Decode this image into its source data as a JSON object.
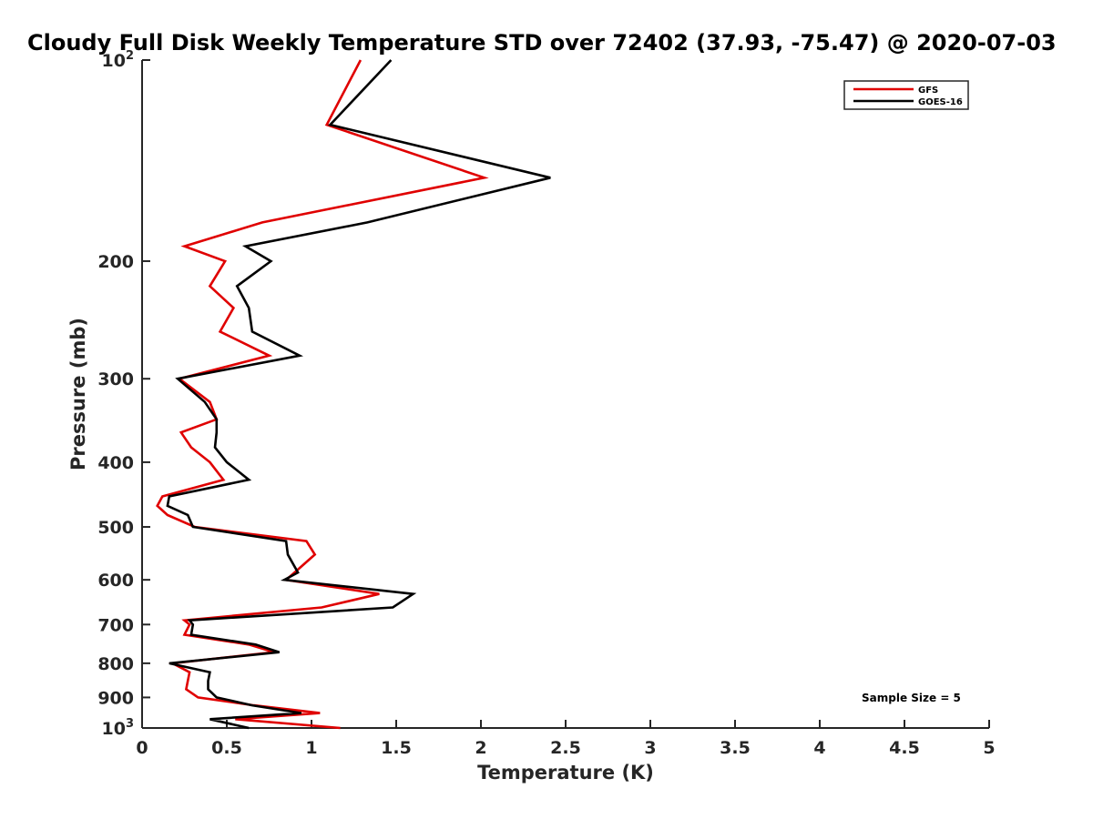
{
  "chart_data": {
    "type": "line",
    "title": "Cloudy Full Disk Weekly Temperature STD over 72402 (37.93, -75.47) @ 2020-07-03",
    "xlabel": "Temperature (K)",
    "ylabel": "Pressure (mb)",
    "xlim": [
      0,
      5
    ],
    "ylim": [
      100,
      1000
    ],
    "y_scale": "log",
    "y_reversed": true,
    "grid": false,
    "legend_position": "top-right",
    "x_ticks": [
      {
        "value": 0,
        "label": "0"
      },
      {
        "value": 0.5,
        "label": "0.5"
      },
      {
        "value": 1,
        "label": "1"
      },
      {
        "value": 1.5,
        "label": "1.5"
      },
      {
        "value": 2,
        "label": "2"
      },
      {
        "value": 2.5,
        "label": "2.5"
      },
      {
        "value": 3,
        "label": "3"
      },
      {
        "value": 3.5,
        "label": "3.5"
      },
      {
        "value": 4,
        "label": "4"
      },
      {
        "value": 4.5,
        "label": "4.5"
      },
      {
        "value": 5,
        "label": "5"
      }
    ],
    "y_ticks": [
      {
        "value": 100,
        "label": "10",
        "sup": "2"
      },
      {
        "value": 200,
        "label": "200",
        "sup": ""
      },
      {
        "value": 300,
        "label": "300",
        "sup": ""
      },
      {
        "value": 400,
        "label": "400",
        "sup": ""
      },
      {
        "value": 500,
        "label": "500",
        "sup": ""
      },
      {
        "value": 600,
        "label": "600",
        "sup": ""
      },
      {
        "value": 700,
        "label": "700",
        "sup": ""
      },
      {
        "value": 800,
        "label": "800",
        "sup": ""
      },
      {
        "value": 900,
        "label": "900",
        "sup": ""
      },
      {
        "value": 1000,
        "label": "10",
        "sup": "3"
      }
    ],
    "series": [
      {
        "name": "GFS",
        "color": "#e00000",
        "points": [
          [
            1.29,
            100
          ],
          [
            1.09,
            125
          ],
          [
            2.02,
            150
          ],
          [
            0.71,
            175
          ],
          [
            0.25,
            190
          ],
          [
            0.49,
            200
          ],
          [
            0.4,
            218
          ],
          [
            0.54,
            235
          ],
          [
            0.46,
            255
          ],
          [
            0.75,
            277
          ],
          [
            0.22,
            300
          ],
          [
            0.4,
            325
          ],
          [
            0.44,
            345
          ],
          [
            0.23,
            361
          ],
          [
            0.29,
            380
          ],
          [
            0.4,
            400
          ],
          [
            0.48,
            425
          ],
          [
            0.12,
            450
          ],
          [
            0.09,
            465
          ],
          [
            0.15,
            480
          ],
          [
            0.31,
            500
          ],
          [
            0.97,
            525
          ],
          [
            1.02,
            550
          ],
          [
            0.9,
            585
          ],
          [
            0.85,
            600
          ],
          [
            1.4,
            630
          ],
          [
            1.06,
            660
          ],
          [
            0.25,
            690
          ],
          [
            0.28,
            700
          ],
          [
            0.25,
            725
          ],
          [
            0.63,
            750
          ],
          [
            0.78,
            770
          ],
          [
            0.18,
            800
          ],
          [
            0.28,
            825
          ],
          [
            0.27,
            850
          ],
          [
            0.26,
            875
          ],
          [
            0.33,
            900
          ],
          [
            0.66,
            925
          ],
          [
            1.05,
            950
          ],
          [
            0.55,
            970
          ],
          [
            1.17,
            1000
          ]
        ]
      },
      {
        "name": "GOES-16",
        "color": "#000000",
        "points": [
          [
            1.47,
            100
          ],
          [
            1.11,
            125
          ],
          [
            2.41,
            150
          ],
          [
            1.33,
            175
          ],
          [
            0.61,
            190
          ],
          [
            0.76,
            200
          ],
          [
            0.56,
            218
          ],
          [
            0.63,
            235
          ],
          [
            0.65,
            255
          ],
          [
            0.93,
            277
          ],
          [
            0.21,
            300
          ],
          [
            0.37,
            325
          ],
          [
            0.44,
            345
          ],
          [
            0.44,
            361
          ],
          [
            0.43,
            380
          ],
          [
            0.5,
            400
          ],
          [
            0.63,
            425
          ],
          [
            0.16,
            450
          ],
          [
            0.15,
            465
          ],
          [
            0.27,
            480
          ],
          [
            0.3,
            500
          ],
          [
            0.85,
            525
          ],
          [
            0.86,
            550
          ],
          [
            0.92,
            585
          ],
          [
            0.84,
            600
          ],
          [
            1.6,
            630
          ],
          [
            1.48,
            660
          ],
          [
            0.28,
            690
          ],
          [
            0.3,
            700
          ],
          [
            0.29,
            725
          ],
          [
            0.67,
            750
          ],
          [
            0.81,
            770
          ],
          [
            0.16,
            800
          ],
          [
            0.4,
            825
          ],
          [
            0.39,
            850
          ],
          [
            0.39,
            875
          ],
          [
            0.44,
            900
          ],
          [
            0.65,
            925
          ],
          [
            0.94,
            950
          ],
          [
            0.4,
            970
          ],
          [
            0.63,
            1000
          ]
        ]
      }
    ],
    "annotations": [
      "Sample Size = 5"
    ]
  }
}
